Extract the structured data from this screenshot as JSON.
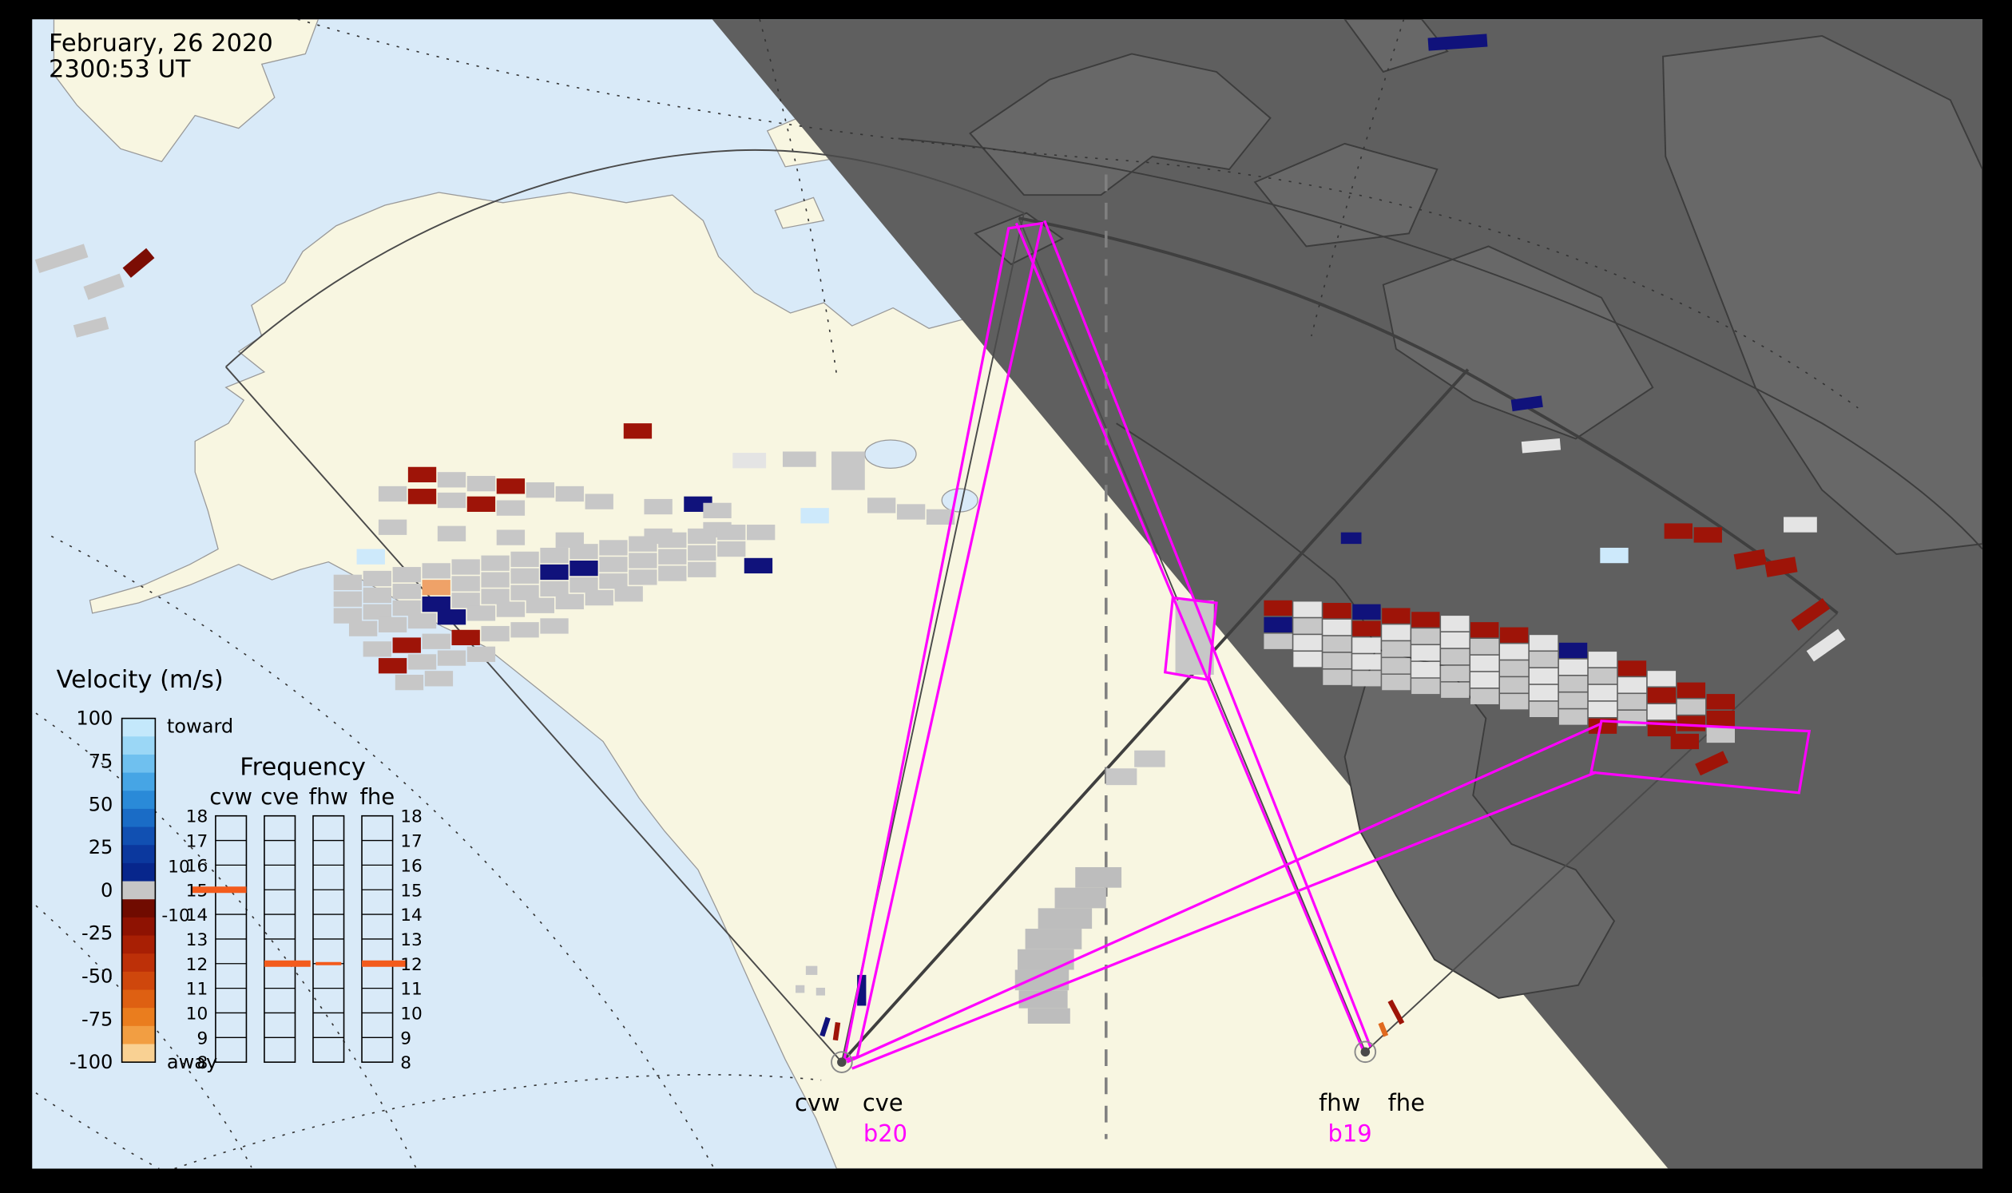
{
  "header": {
    "date": "February, 26 2020",
    "time": "2300:53 UT"
  },
  "velocity_legend": {
    "title": "Velocity (m/s)",
    "toward": "toward",
    "away": "away",
    "ticks": [
      "100",
      "75",
      "50",
      "25",
      "0",
      "-25",
      "-50",
      "-75",
      "-100"
    ],
    "toward_colors": [
      "#c4e8fb",
      "#9bd7f6",
      "#6fc0ef",
      "#46a5e5",
      "#2a8ad8",
      "#1a6cc6",
      "#1150b2",
      "#0b389e",
      "#07268c"
    ],
    "zero_color": "#c6c6c6",
    "away_colors": [
      "#700b00",
      "#8e1202",
      "#a81f04",
      "#bd3008",
      "#cf470c",
      "#de6012",
      "#ea7d1e",
      "#f29e42",
      "#f9d193"
    ]
  },
  "frequency_panel": {
    "title": "Frequency",
    "columns": [
      "cvw",
      "cve",
      "fhw",
      "fhe"
    ],
    "scale": [
      "18",
      "17",
      "16",
      "15",
      "14",
      "13",
      "12",
      "11",
      "10",
      "9",
      "8"
    ],
    "secondary_left": [
      {
        "label": "10"
      },
      {
        "label": "-10"
      }
    ],
    "markers": {
      "cvw": 15,
      "cve": 12,
      "fhw": 12,
      "fhe": 12
    }
  },
  "radar_sites": [
    {
      "name_left": "cvw",
      "name_right": "cve",
      "beam": "b20"
    },
    {
      "name_left": "fhw",
      "name_right": "fhe",
      "beam": "b19"
    }
  ],
  "colors": {
    "G": "#c7c7c7",
    "W": "#e4e4e4",
    "R": "#9e1408",
    "DR": "#7c0d04",
    "B": "#10127b",
    "LB": "#cde9fb",
    "O": "#efa268",
    "OR": "#e06a20",
    "GS": "#bdbdbd",
    "ocean": "#d9eaf8",
    "land_day": "#f8f6e1",
    "night": "#5f5f5f",
    "beam_magenta": "#ff00ff",
    "freq_marker": "#f35b1c",
    "FM": "#f35b1c"
  },
  "map_cells": [
    [
      318,
      364,
      "R"
    ],
    [
      341,
      368,
      "G"
    ],
    [
      364,
      371,
      "G"
    ],
    [
      387,
      373,
      "R"
    ],
    [
      410,
      376,
      "G"
    ],
    [
      433,
      379,
      "G"
    ],
    [
      486,
      330,
      "R"
    ],
    [
      533,
      387,
      "B"
    ],
    [
      571,
      353,
      26,
      12,
      "W",
      0
    ],
    [
      610,
      352,
      26,
      12,
      "G",
      0
    ],
    [
      648,
      352,
      26,
      30,
      "G",
      0
    ],
    [
      676,
      388,
      "G"
    ],
    [
      699,
      393,
      "G"
    ],
    [
      722,
      397,
      "G"
    ],
    [
      295,
      379,
      "G"
    ],
    [
      318,
      381,
      "R"
    ],
    [
      341,
      384,
      "G"
    ],
    [
      364,
      387,
      "R"
    ],
    [
      387,
      390,
      "G"
    ],
    [
      456,
      385,
      "G"
    ],
    [
      502,
      389,
      "G"
    ],
    [
      548,
      392,
      "G"
    ],
    [
      295,
      405,
      "G"
    ],
    [
      341,
      410,
      "G"
    ],
    [
      387,
      413,
      "G"
    ],
    [
      433,
      415,
      "G"
    ],
    [
      502,
      412,
      "G"
    ],
    [
      548,
      407,
      "G"
    ],
    [
      624,
      396,
      "LB"
    ],
    [
      278,
      428,
      "LB"
    ],
    [
      260,
      448,
      "G"
    ],
    [
      283,
      445,
      "G"
    ],
    [
      306,
      442,
      "G"
    ],
    [
      329,
      439,
      "G"
    ],
    [
      352,
      436,
      "G"
    ],
    [
      375,
      433,
      "G"
    ],
    [
      398,
      430,
      "G"
    ],
    [
      421,
      427,
      "G"
    ],
    [
      444,
      424,
      "G"
    ],
    [
      467,
      421,
      "G"
    ],
    [
      490,
      418,
      "G"
    ],
    [
      513,
      415,
      "G"
    ],
    [
      536,
      412,
      "G"
    ],
    [
      559,
      409,
      "G"
    ],
    [
      582,
      409,
      "G"
    ],
    [
      260,
      461,
      "G"
    ],
    [
      283,
      458,
      "G"
    ],
    [
      306,
      455,
      "G"
    ],
    [
      329,
      452,
      "O"
    ],
    [
      352,
      449,
      "G"
    ],
    [
      375,
      446,
      "G"
    ],
    [
      398,
      443,
      "G"
    ],
    [
      421,
      440,
      "B"
    ],
    [
      444,
      437,
      "B"
    ],
    [
      467,
      434,
      "G"
    ],
    [
      490,
      431,
      "G"
    ],
    [
      513,
      428,
      "G"
    ],
    [
      536,
      425,
      "G"
    ],
    [
      559,
      422,
      "G"
    ],
    [
      580,
      435,
      "B"
    ],
    [
      260,
      474,
      "G"
    ],
    [
      283,
      471,
      "G"
    ],
    [
      306,
      468,
      "G"
    ],
    [
      329,
      465,
      "B"
    ],
    [
      352,
      462,
      "G"
    ],
    [
      375,
      459,
      "G"
    ],
    [
      398,
      456,
      "G"
    ],
    [
      421,
      453,
      "G"
    ],
    [
      444,
      450,
      "G"
    ],
    [
      467,
      447,
      "G"
    ],
    [
      490,
      444,
      "G"
    ],
    [
      513,
      441,
      "G"
    ],
    [
      536,
      438,
      "G"
    ],
    [
      272,
      484,
      "G"
    ],
    [
      295,
      481,
      "G"
    ],
    [
      318,
      478,
      "G"
    ],
    [
      341,
      475,
      "B"
    ],
    [
      364,
      472,
      "G"
    ],
    [
      387,
      469,
      "G"
    ],
    [
      410,
      466,
      "G"
    ],
    [
      433,
      463,
      "G"
    ],
    [
      456,
      460,
      "G"
    ],
    [
      479,
      457,
      "G"
    ],
    [
      283,
      500,
      "G"
    ],
    [
      306,
      497,
      "R"
    ],
    [
      329,
      494,
      "G"
    ],
    [
      352,
      491,
      "R"
    ],
    [
      375,
      488,
      "G"
    ],
    [
      398,
      485,
      "G"
    ],
    [
      421,
      482,
      "G"
    ],
    [
      295,
      513,
      "R"
    ],
    [
      318,
      510,
      "G"
    ],
    [
      341,
      507,
      "G"
    ],
    [
      364,
      504,
      "G"
    ],
    [
      308,
      526,
      "G"
    ],
    [
      331,
      523,
      "G"
    ],
    [
      985,
      468,
      "R"
    ],
    [
      1008,
      469,
      "W"
    ],
    [
      1031,
      470,
      "R"
    ],
    [
      1054,
      471,
      "B"
    ],
    [
      1077,
      474,
      "R"
    ],
    [
      1100,
      477,
      "R"
    ],
    [
      1123,
      480,
      "W"
    ],
    [
      1146,
      485,
      "R"
    ],
    [
      1169,
      489,
      "R"
    ],
    [
      1192,
      495,
      "W"
    ],
    [
      1215,
      501,
      "B"
    ],
    [
      1238,
      508,
      "W"
    ],
    [
      1261,
      515,
      "R"
    ],
    [
      1284,
      523,
      "W"
    ],
    [
      1307,
      532,
      "R"
    ],
    [
      1330,
      541,
      "R"
    ],
    [
      985,
      481,
      "B"
    ],
    [
      1008,
      482,
      "G"
    ],
    [
      1031,
      483,
      "W"
    ],
    [
      1054,
      484,
      "R"
    ],
    [
      1077,
      487,
      "W"
    ],
    [
      1100,
      490,
      "G"
    ],
    [
      1123,
      493,
      "W"
    ],
    [
      1146,
      498,
      "G"
    ],
    [
      1169,
      502,
      "W"
    ],
    [
      1192,
      508,
      "G"
    ],
    [
      1215,
      514,
      "W"
    ],
    [
      1238,
      521,
      "G"
    ],
    [
      1261,
      528,
      "W"
    ],
    [
      1284,
      536,
      "R"
    ],
    [
      1307,
      545,
      "G"
    ],
    [
      1330,
      554,
      "R"
    ],
    [
      985,
      494,
      "G"
    ],
    [
      1008,
      495,
      "W"
    ],
    [
      1031,
      496,
      "G"
    ],
    [
      1054,
      497,
      "W"
    ],
    [
      1077,
      500,
      "G"
    ],
    [
      1100,
      503,
      "W"
    ],
    [
      1123,
      506,
      "G"
    ],
    [
      1146,
      511,
      "W"
    ],
    [
      1169,
      515,
      "G"
    ],
    [
      1192,
      521,
      "W"
    ],
    [
      1215,
      527,
      "G"
    ],
    [
      1238,
      534,
      "W"
    ],
    [
      1261,
      541,
      "G"
    ],
    [
      1284,
      549,
      "W"
    ],
    [
      1307,
      558,
      "R"
    ],
    [
      1330,
      567,
      "G"
    ],
    [
      1008,
      508,
      "W"
    ],
    [
      1031,
      509,
      "G"
    ],
    [
      1054,
      510,
      "W"
    ],
    [
      1077,
      513,
      "G"
    ],
    [
      1100,
      516,
      "W"
    ],
    [
      1123,
      519,
      "G"
    ],
    [
      1146,
      524,
      "W"
    ],
    [
      1169,
      528,
      "G"
    ],
    [
      1192,
      534,
      "W"
    ],
    [
      1215,
      540,
      "G"
    ],
    [
      1238,
      547,
      "W"
    ],
    [
      1261,
      554,
      "G"
    ],
    [
      1284,
      562,
      "R"
    ],
    [
      1031,
      522,
      "G"
    ],
    [
      1054,
      523,
      "G"
    ],
    [
      1077,
      526,
      "G"
    ],
    [
      1100,
      529,
      "G"
    ],
    [
      1123,
      532,
      "G"
    ],
    [
      1146,
      537,
      "G"
    ],
    [
      1169,
      541,
      "G"
    ],
    [
      1192,
      547,
      "G"
    ],
    [
      1215,
      553,
      "G"
    ],
    [
      1238,
      560,
      "R"
    ],
    [
      1297,
      408,
      "R"
    ],
    [
      1320,
      411,
      "R"
    ],
    [
      1390,
      403,
      26,
      12,
      "W",
      0
    ],
    [
      1352,
      430,
      24,
      12,
      "R",
      -10
    ],
    [
      1376,
      436,
      24,
      12,
      "R",
      -10
    ],
    [
      1247,
      427,
      "LB"
    ],
    [
      1045,
      415,
      16,
      9,
      "B",
      0
    ],
    [
      1396,
      474,
      30,
      10,
      "R",
      -35
    ],
    [
      1408,
      498,
      30,
      10,
      "W",
      -35
    ],
    [
      1302,
      572,
      "R"
    ],
    [
      1322,
      590,
      24,
      10,
      "R",
      -25
    ],
    [
      1113,
      28,
      46,
      10,
      "B",
      -4
    ],
    [
      1178,
      310,
      24,
      9,
      "B",
      -8
    ],
    [
      1186,
      343,
      30,
      9,
      "W",
      -5
    ],
    [
      28,
      196,
      40,
      11,
      "G",
      -18
    ],
    [
      66,
      218,
      30,
      11,
      "G",
      -20
    ],
    [
      96,
      200,
      24,
      10,
      "DR",
      -40
    ],
    [
      58,
      250,
      26,
      10,
      "G",
      -15
    ],
    [
      668,
      760,
      7,
      24,
      "B",
      0
    ],
    [
      641,
      793,
      4,
      15,
      "B",
      18
    ],
    [
      650,
      797,
      4,
      14,
      "R",
      8
    ],
    [
      628,
      753,
      9,
      7,
      "G",
      0
    ],
    [
      620,
      768,
      7,
      6,
      "G",
      0
    ],
    [
      636,
      770,
      7,
      6,
      "G",
      0
    ],
    [
      1086,
      779,
      4,
      20,
      "R",
      -28
    ],
    [
      1076,
      797,
      4,
      11,
      "OR",
      -22
    ],
    [
      838,
      676,
      36,
      16,
      "GS",
      0
    ],
    [
      822,
      692,
      40,
      16,
      "GS",
      0
    ],
    [
      809,
      708,
      42,
      16,
      "GS",
      0
    ],
    [
      799,
      724,
      44,
      16,
      "GS",
      0
    ],
    [
      793,
      740,
      44,
      16,
      "GS",
      0
    ],
    [
      791,
      756,
      42,
      16,
      "GS",
      0
    ],
    [
      794,
      772,
      38,
      14,
      "GS",
      0
    ],
    [
      801,
      786,
      33,
      12,
      "GS",
      0
    ],
    [
      884,
      585,
      24,
      13,
      "G",
      0
    ],
    [
      862,
      599,
      24,
      13,
      "G",
      0
    ],
    [
      916,
      468,
      30,
      58,
      "G",
      0
    ]
  ]
}
